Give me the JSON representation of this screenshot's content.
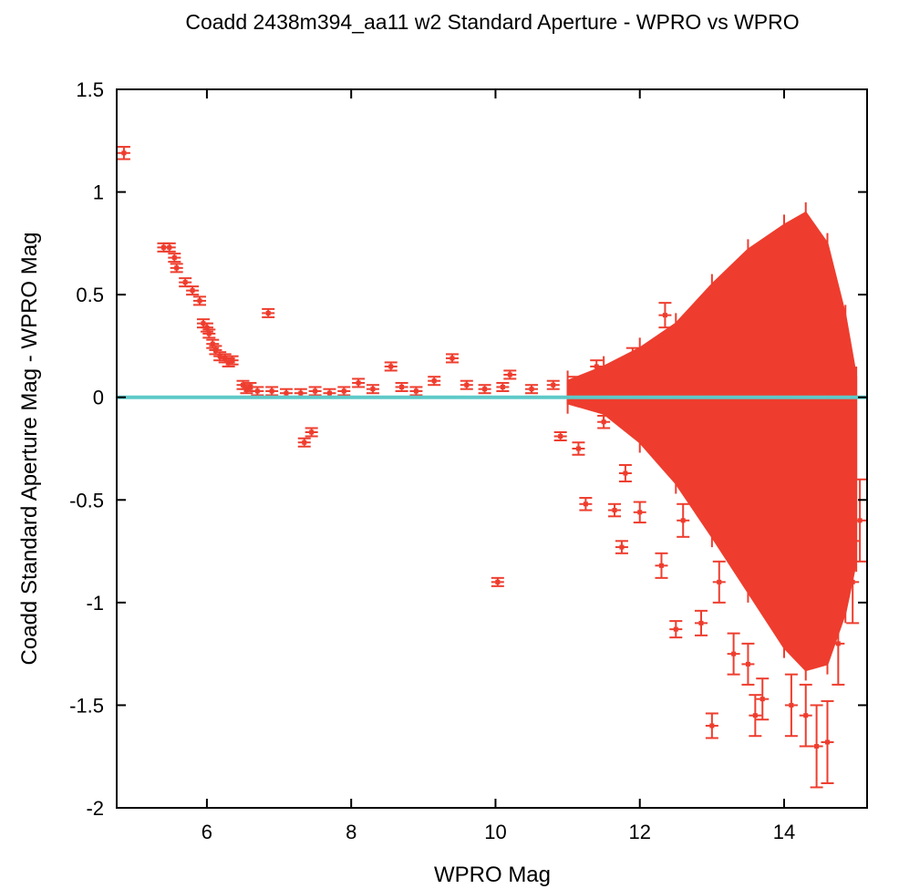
{
  "chart_data": {
    "type": "scatter",
    "title": "Coadd 2438m394_aa11 w2 Standard Aperture - WPRO vs WPRO",
    "xlabel": "WPRO Mag",
    "ylabel": "Coadd Standard Aperture Mag - WPRO Mag",
    "xlim": [
      4.75,
      15.15
    ],
    "ylim": [
      -2,
      1.5
    ],
    "x_ticks": [
      {
        "value": 6,
        "label": "6"
      },
      {
        "value": 8,
        "label": "8"
      },
      {
        "value": 10,
        "label": "10"
      },
      {
        "value": 12,
        "label": "12"
      },
      {
        "value": 14,
        "label": "14"
      }
    ],
    "y_ticks": [
      {
        "value": 1.5,
        "label": "1.5"
      },
      {
        "value": 1,
        "label": "1"
      },
      {
        "value": 0.5,
        "label": "0.5"
      },
      {
        "value": 0,
        "label": "0"
      },
      {
        "value": -0.5,
        "label": "-0.5"
      },
      {
        "value": -1,
        "label": "-1"
      },
      {
        "value": -1.5,
        "label": "-1.5"
      },
      {
        "value": -2,
        "label": "-2"
      }
    ],
    "grid": false,
    "reference_line": {
      "y": 0,
      "color": "#5ec9c8"
    },
    "series": [
      {
        "color": "#ee3d2e",
        "points": [
          [
            4.85,
            1.19,
            0.03
          ],
          [
            5.4,
            0.73,
            0.02
          ],
          [
            5.48,
            0.73,
            0.02
          ],
          [
            5.55,
            0.68,
            0.02
          ],
          [
            5.58,
            0.63,
            0.02
          ],
          [
            5.7,
            0.56,
            0.02
          ],
          [
            5.8,
            0.52,
            0.02
          ],
          [
            5.9,
            0.47,
            0.02
          ],
          [
            5.95,
            0.36,
            0.02
          ],
          [
            6.0,
            0.34,
            0.02
          ],
          [
            6.03,
            0.31,
            0.02
          ],
          [
            6.08,
            0.26,
            0.02
          ],
          [
            6.12,
            0.23,
            0.02
          ],
          [
            6.18,
            0.2,
            0.02
          ],
          [
            6.25,
            0.19,
            0.02
          ],
          [
            6.3,
            0.17,
            0.02
          ],
          [
            6.35,
            0.18,
            0.02
          ],
          [
            6.5,
            0.06,
            0.02
          ],
          [
            6.55,
            0.04,
            0.02
          ],
          [
            6.6,
            0.05,
            0.02
          ],
          [
            6.7,
            0.03,
            0.02
          ],
          [
            6.85,
            0.41,
            0.02
          ],
          [
            6.9,
            0.03,
            0.02
          ],
          [
            7.1,
            0.02,
            0.02
          ],
          [
            7.3,
            0.02,
            0.02
          ],
          [
            7.35,
            -0.22,
            0.02
          ],
          [
            7.45,
            -0.17,
            0.02
          ],
          [
            7.5,
            0.03,
            0.02
          ],
          [
            7.7,
            0.02,
            0.02
          ],
          [
            7.9,
            0.03,
            0.02
          ],
          [
            8.1,
            0.07,
            0.02
          ],
          [
            8.3,
            0.04,
            0.02
          ],
          [
            8.55,
            0.15,
            0.02
          ],
          [
            8.7,
            0.05,
            0.02
          ],
          [
            8.9,
            0.03,
            0.02
          ],
          [
            9.15,
            0.08,
            0.02
          ],
          [
            9.4,
            0.19,
            0.02
          ],
          [
            9.6,
            0.06,
            0.02
          ],
          [
            9.85,
            0.04,
            0.02
          ],
          [
            10.03,
            -0.9,
            0.02
          ],
          [
            10.1,
            0.05,
            0.02
          ],
          [
            10.2,
            0.11,
            0.02
          ],
          [
            10.5,
            0.04,
            0.02
          ],
          [
            10.8,
            0.06,
            0.02
          ],
          [
            10.9,
            -0.19,
            0.02
          ],
          [
            11.1,
            0.08,
            0.02
          ],
          [
            11.15,
            -0.25,
            0.03
          ],
          [
            11.25,
            -0.52,
            0.03
          ],
          [
            11.4,
            0.15,
            0.03
          ],
          [
            11.5,
            -0.12,
            0.03
          ],
          [
            11.65,
            -0.55,
            0.03
          ],
          [
            11.75,
            -0.73,
            0.03
          ],
          [
            11.8,
            -0.37,
            0.04
          ],
          [
            11.9,
            0.2,
            0.04
          ],
          [
            12.0,
            -0.56,
            0.05
          ],
          [
            12.15,
            -0.1,
            0.05
          ],
          [
            12.3,
            -0.82,
            0.06
          ],
          [
            12.35,
            0.4,
            0.06
          ],
          [
            12.5,
            -1.13,
            0.04
          ],
          [
            12.6,
            -0.6,
            0.08
          ],
          [
            12.85,
            -1.1,
            0.06
          ],
          [
            13.0,
            -1.6,
            0.06
          ],
          [
            13.1,
            -0.9,
            0.1
          ],
          [
            13.3,
            -1.25,
            0.1
          ],
          [
            13.5,
            -1.3,
            0.1
          ],
          [
            13.6,
            -1.55,
            0.1
          ],
          [
            13.7,
            -1.47,
            0.1
          ],
          [
            14.1,
            -1.5,
            0.15
          ],
          [
            14.3,
            -1.55,
            0.15
          ],
          [
            14.45,
            -1.7,
            0.2
          ],
          [
            14.6,
            -1.68,
            0.2
          ],
          [
            14.75,
            -1.2,
            0.2
          ],
          [
            14.95,
            -0.9,
            0.2
          ],
          [
            15.05,
            -0.6,
            0.2
          ]
        ]
      }
    ],
    "dense_envelope": [
      [
        11.0,
        0.08,
        -0.03
      ],
      [
        11.5,
        0.15,
        -0.08
      ],
      [
        12.0,
        0.24,
        -0.22
      ],
      [
        12.5,
        0.36,
        -0.42
      ],
      [
        13.0,
        0.55,
        -0.68
      ],
      [
        13.5,
        0.72,
        -0.95
      ],
      [
        14.0,
        0.84,
        -1.22
      ],
      [
        14.3,
        0.9,
        -1.33
      ],
      [
        14.6,
        0.75,
        -1.3
      ],
      [
        14.85,
        0.4,
        -1.05
      ],
      [
        15.0,
        0.1,
        -0.8
      ]
    ]
  }
}
